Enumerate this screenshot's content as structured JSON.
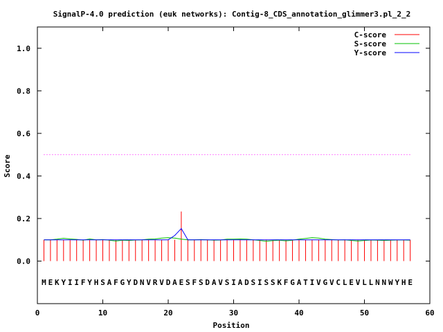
{
  "chart_data": {
    "type": "line",
    "title": "SignalP-4.0 prediction (euk networks): Contig-8_CDS_annotation_glimmer3.pl_2_2",
    "xlabel": "Position",
    "ylabel": "Score",
    "xlim": [
      0,
      60
    ],
    "ylim": [
      -0.2,
      1.1
    ],
    "xticks": [
      0,
      10,
      20,
      30,
      40,
      50,
      60
    ],
    "yticks": [
      0.0,
      0.2,
      0.4,
      0.6,
      0.8,
      1.0
    ],
    "xtick_labels": [
      "0",
      "10",
      "20",
      "30",
      "40",
      "50",
      "60"
    ],
    "ytick_labels": [
      "0.0",
      "0.2",
      "0.4",
      "0.6",
      "0.8",
      "1.0"
    ],
    "legend_position": "top-right",
    "threshold": 0.5,
    "threshold_color": "#ff00ff",
    "sequence": "MEKYIIFYHSAFGYDNVRVDAESFSDAVSIADSISSKFGATIVGVCLEVLLNNWYHE",
    "sequence_y": -0.1,
    "positions": [
      1,
      2,
      3,
      4,
      5,
      6,
      7,
      8,
      9,
      10,
      11,
      12,
      13,
      14,
      15,
      16,
      17,
      18,
      19,
      20,
      21,
      22,
      23,
      24,
      25,
      26,
      27,
      28,
      29,
      30,
      31,
      32,
      33,
      34,
      35,
      36,
      37,
      38,
      39,
      40,
      41,
      42,
      43,
      44,
      45,
      46,
      47,
      48,
      49,
      50,
      51,
      52,
      53,
      54,
      55,
      56,
      57
    ],
    "series": [
      {
        "name": "C-score",
        "color": "#ff0000",
        "style": "impulses",
        "values": [
          0.1,
          0.1,
          0.1,
          0.1,
          0.1,
          0.1,
          0.1,
          0.1,
          0.1,
          0.1,
          0.1,
          0.1,
          0.1,
          0.1,
          0.1,
          0.1,
          0.1,
          0.1,
          0.1,
          0.1,
          0.1,
          0.233,
          0.1,
          0.1,
          0.1,
          0.1,
          0.1,
          0.1,
          0.1,
          0.1,
          0.1,
          0.1,
          0.1,
          0.1,
          0.1,
          0.1,
          0.1,
          0.1,
          0.1,
          0.1,
          0.1,
          0.1,
          0.1,
          0.1,
          0.1,
          0.1,
          0.1,
          0.1,
          0.1,
          0.1,
          0.1,
          0.1,
          0.1,
          0.1,
          0.1,
          0.1,
          0.1
        ]
      },
      {
        "name": "S-score",
        "color": "#00c000",
        "style": "line",
        "values": [
          0.1,
          0.1,
          0.103,
          0.107,
          0.104,
          0.102,
          0.098,
          0.104,
          0.1,
          0.101,
          0.098,
          0.094,
          0.098,
          0.097,
          0.099,
          0.1,
          0.103,
          0.104,
          0.108,
          0.11,
          0.108,
          0.103,
          0.1,
          0.1,
          0.101,
          0.1,
          0.098,
          0.099,
          0.103,
          0.103,
          0.104,
          0.103,
          0.1,
          0.097,
          0.093,
          0.096,
          0.098,
          0.095,
          0.098,
          0.103,
          0.106,
          0.11,
          0.108,
          0.103,
          0.101,
          0.099,
          0.1,
          0.097,
          0.094,
          0.097,
          0.099,
          0.098,
          0.097,
          0.098,
          0.099,
          0.099,
          0.098
        ]
      },
      {
        "name": "Y-score",
        "color": "#0000ff",
        "style": "line",
        "values": [
          0.1,
          0.1,
          0.1,
          0.1,
          0.1,
          0.1,
          0.1,
          0.1,
          0.1,
          0.1,
          0.1,
          0.1,
          0.1,
          0.1,
          0.1,
          0.1,
          0.1,
          0.1,
          0.1,
          0.1,
          0.12,
          0.153,
          0.1,
          0.1,
          0.1,
          0.1,
          0.1,
          0.1,
          0.1,
          0.1,
          0.1,
          0.1,
          0.1,
          0.1,
          0.1,
          0.1,
          0.1,
          0.1,
          0.1,
          0.1,
          0.1,
          0.1,
          0.1,
          0.1,
          0.1,
          0.1,
          0.1,
          0.1,
          0.1,
          0.1,
          0.1,
          0.1,
          0.1,
          0.1,
          0.1,
          0.1,
          0.1
        ]
      }
    ]
  }
}
